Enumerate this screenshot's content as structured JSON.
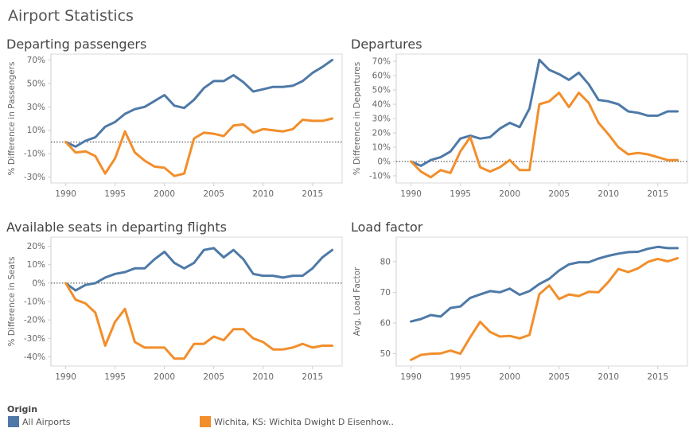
{
  "dashboard": {
    "title": "Airport Statistics"
  },
  "legend": {
    "title": "Origin",
    "items": [
      {
        "label": "All Airports",
        "color": "#4e79a7"
      },
      {
        "label": "Wichita, KS: Wichita Dwight D Eisenhow..",
        "color": "#f28e2b"
      }
    ]
  },
  "chart_data": [
    {
      "type": "line",
      "title": "Departing passengers",
      "ylabel": "% Difference in Passengers",
      "xlabel": "",
      "ylim": [
        -35,
        75
      ],
      "xlim": [
        1988.5,
        2018
      ],
      "yticks": [
        -30,
        -10,
        10,
        30,
        50,
        70
      ],
      "yticklabels": [
        "-30%",
        "-10%",
        "10%",
        "30%",
        "50%",
        "70%"
      ],
      "xticks": [
        1990,
        1995,
        2000,
        2005,
        2010,
        2015
      ],
      "xticklabels": [
        "1990",
        "1995",
        "2000",
        "2005",
        "2010",
        "2015"
      ],
      "zero_line": true,
      "x": [
        1990,
        1991,
        1992,
        1993,
        1994,
        1995,
        1996,
        1997,
        1998,
        1999,
        2000,
        2001,
        2002,
        2003,
        2004,
        2005,
        2006,
        2007,
        2008,
        2009,
        2010,
        2011,
        2012,
        2013,
        2014,
        2015,
        2016,
        2017
      ],
      "series": [
        {
          "name": "All Airports",
          "color": "#4e79a7",
          "values": [
            0,
            -4,
            1,
            4,
            13,
            17,
            24,
            28,
            30,
            35,
            40,
            31,
            29,
            36,
            46,
            52,
            52,
            57,
            51,
            43,
            45,
            47,
            47,
            48,
            52,
            59,
            64,
            70
          ]
        },
        {
          "name": "Wichita, KS: Wichita Dwight D Eisenhow..",
          "color": "#f28e2b",
          "values": [
            0,
            -9,
            -8,
            -12,
            -27,
            -14,
            9,
            -9,
            -16,
            -21,
            -22,
            -29,
            -27,
            3,
            8,
            7,
            5,
            14,
            15,
            8,
            11,
            10,
            9,
            11,
            19,
            18,
            18,
            20
          ]
        }
      ]
    },
    {
      "type": "line",
      "title": "Departures",
      "ylabel": "% Difference in Departures",
      "xlabel": "",
      "ylim": [
        -15,
        75
      ],
      "xlim": [
        1988.5,
        2018
      ],
      "yticks": [
        -10,
        0,
        10,
        20,
        30,
        40,
        50,
        60,
        70
      ],
      "yticklabels": [
        "-10%",
        "0%",
        "10%",
        "20%",
        "30%",
        "40%",
        "50%",
        "60%",
        "70%"
      ],
      "xticks": [
        1990,
        1995,
        2000,
        2005,
        2010,
        2015
      ],
      "xticklabels": [
        "1990",
        "1995",
        "2000",
        "2005",
        "2010",
        "2015"
      ],
      "zero_line": true,
      "x": [
        1990,
        1991,
        1992,
        1993,
        1994,
        1995,
        1996,
        1997,
        1998,
        1999,
        2000,
        2001,
        2002,
        2003,
        2004,
        2005,
        2006,
        2007,
        2008,
        2009,
        2010,
        2011,
        2012,
        2013,
        2014,
        2015,
        2016,
        2017
      ],
      "series": [
        {
          "name": "All Airports",
          "color": "#4e79a7",
          "values": [
            0,
            -3,
            1,
            3,
            7,
            16,
            18,
            16,
            17,
            23,
            27,
            24,
            37,
            71,
            64,
            61,
            57,
            62,
            54,
            43,
            42,
            40,
            35,
            34,
            32,
            32,
            35,
            35
          ]
        },
        {
          "name": "Wichita, KS: Wichita Dwight D Eisenhow..",
          "color": "#f28e2b",
          "values": [
            0,
            -7,
            -11,
            -6,
            -8,
            7,
            17,
            -4,
            -7,
            -4,
            1,
            -6,
            -6,
            40,
            42,
            48,
            38,
            48,
            41,
            27,
            19,
            10,
            5,
            6,
            5,
            3,
            1,
            1
          ]
        }
      ]
    },
    {
      "type": "line",
      "title": "Available seats in departing flights",
      "ylabel": "% Difference in Seats",
      "xlabel": "",
      "ylim": [
        -45,
        25
      ],
      "xlim": [
        1988.5,
        2018
      ],
      "yticks": [
        -40,
        -30,
        -20,
        -10,
        0,
        10,
        20
      ],
      "yticklabels": [
        "-40%",
        "-30%",
        "-20%",
        "-10%",
        "0%",
        "10%",
        "20%"
      ],
      "xticks": [
        1990,
        1995,
        2000,
        2005,
        2010,
        2015
      ],
      "xticklabels": [
        "1990",
        "1995",
        "2000",
        "2005",
        "2010",
        "2015"
      ],
      "zero_line": true,
      "x": [
        1990,
        1991,
        1992,
        1993,
        1994,
        1995,
        1996,
        1997,
        1998,
        1999,
        2000,
        2001,
        2002,
        2003,
        2004,
        2005,
        2006,
        2007,
        2008,
        2009,
        2010,
        2011,
        2012,
        2013,
        2014,
        2015,
        2016,
        2017
      ],
      "series": [
        {
          "name": "All Airports",
          "color": "#4e79a7",
          "values": [
            0,
            -4,
            -1,
            0,
            3,
            5,
            6,
            8,
            8,
            13,
            17,
            11,
            8,
            11,
            18,
            19,
            14,
            18,
            13,
            5,
            4,
            4,
            3,
            4,
            4,
            8,
            14,
            18
          ]
        },
        {
          "name": "Wichita, KS: Wichita Dwight D Eisenhow..",
          "color": "#f28e2b",
          "values": [
            0,
            -9,
            -11,
            -16,
            -34,
            -21,
            -14,
            -32,
            -35,
            -35,
            -35,
            -41,
            -41,
            -33,
            -33,
            -29,
            -31,
            -25,
            -25,
            -30,
            -32,
            -36,
            -36,
            -35,
            -33,
            -35,
            -34,
            -34
          ]
        }
      ]
    },
    {
      "type": "line",
      "title": "Load factor",
      "ylabel": "Avg. Load Factor",
      "xlabel": "",
      "ylim": [
        46,
        88
      ],
      "xlim": [
        1988.5,
        2018
      ],
      "yticks": [
        50,
        60,
        70,
        80
      ],
      "yticklabels": [
        "50",
        "60",
        "70",
        "80"
      ],
      "xticks": [
        1990,
        1995,
        2000,
        2005,
        2010,
        2015
      ],
      "xticklabels": [
        "1990",
        "1995",
        "2000",
        "2005",
        "2010",
        "2015"
      ],
      "zero_line": false,
      "x": [
        1990,
        1991,
        1992,
        1993,
        1994,
        1995,
        1996,
        1997,
        1998,
        1999,
        2000,
        2001,
        2002,
        2003,
        2004,
        2005,
        2006,
        2007,
        2008,
        2009,
        2010,
        2011,
        2012,
        2013,
        2014,
        2015,
        2016,
        2017
      ],
      "series": [
        {
          "name": "All Airports",
          "color": "#4e79a7",
          "values": [
            60.5,
            61.3,
            62.6,
            62.1,
            64.9,
            65.4,
            68.2,
            69.3,
            70.4,
            70.0,
            71.2,
            69.2,
            70.4,
            72.7,
            74.4,
            77.1,
            79.1,
            79.8,
            79.8,
            81.0,
            81.9,
            82.6,
            83.1,
            83.2,
            84.2,
            84.8,
            84.4,
            84.4
          ]
        },
        {
          "name": "Wichita, KS: Wichita Dwight D Eisenhow..",
          "color": "#f28e2b",
          "values": [
            48.0,
            49.6,
            50.0,
            50.1,
            51.0,
            50.0,
            55.4,
            60.4,
            57.1,
            55.6,
            55.8,
            55.0,
            56.1,
            69.4,
            72.2,
            67.8,
            69.3,
            68.8,
            70.2,
            70.0,
            73.4,
            77.6,
            76.6,
            77.8,
            79.9,
            80.9,
            80.1,
            81.1
          ]
        }
      ]
    }
  ]
}
